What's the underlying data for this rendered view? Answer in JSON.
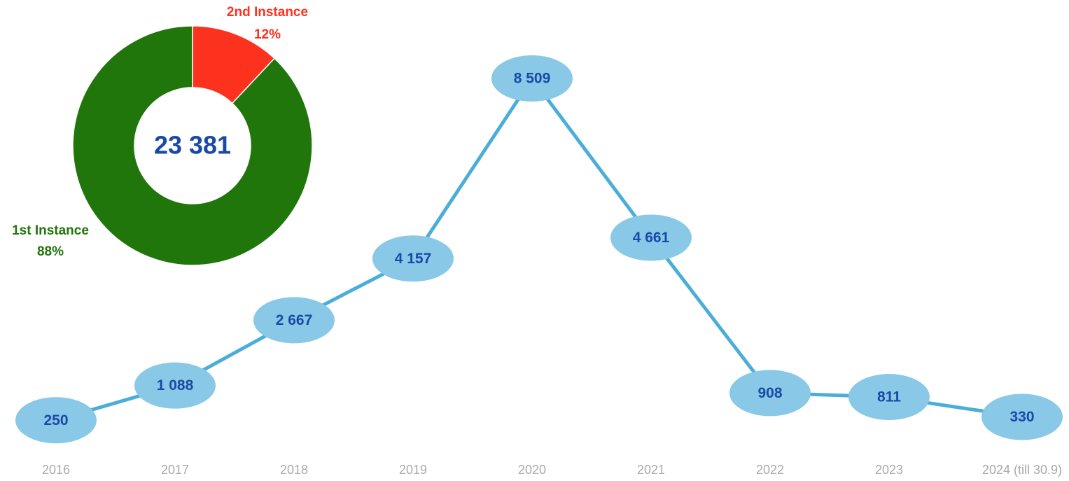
{
  "chart_data": [
    {
      "type": "line",
      "categories": [
        "2016",
        "2017",
        "2018",
        "2019",
        "2020",
        "2021",
        "2022",
        "2023",
        "2024 (till 30.9)"
      ],
      "values": [
        250,
        1088,
        2667,
        4157,
        8509,
        4661,
        908,
        811,
        330
      ],
      "value_labels": [
        "250",
        "1 088",
        "2 667",
        "4 157",
        "8 509",
        "4 661",
        "908",
        "811",
        "330"
      ],
      "color": "#4aaed9",
      "marker_color": "#89c8e6",
      "label_color": "#1a4aa8",
      "ylim": [
        0,
        9000
      ]
    },
    {
      "type": "donut",
      "categories": [
        "1st Instance",
        "2nd Instance"
      ],
      "values": [
        88,
        12
      ],
      "value_labels": [
        "88%",
        "12%"
      ],
      "colors": [
        "#21760b",
        "#fc311e"
      ],
      "center_text": "23 381"
    }
  ]
}
